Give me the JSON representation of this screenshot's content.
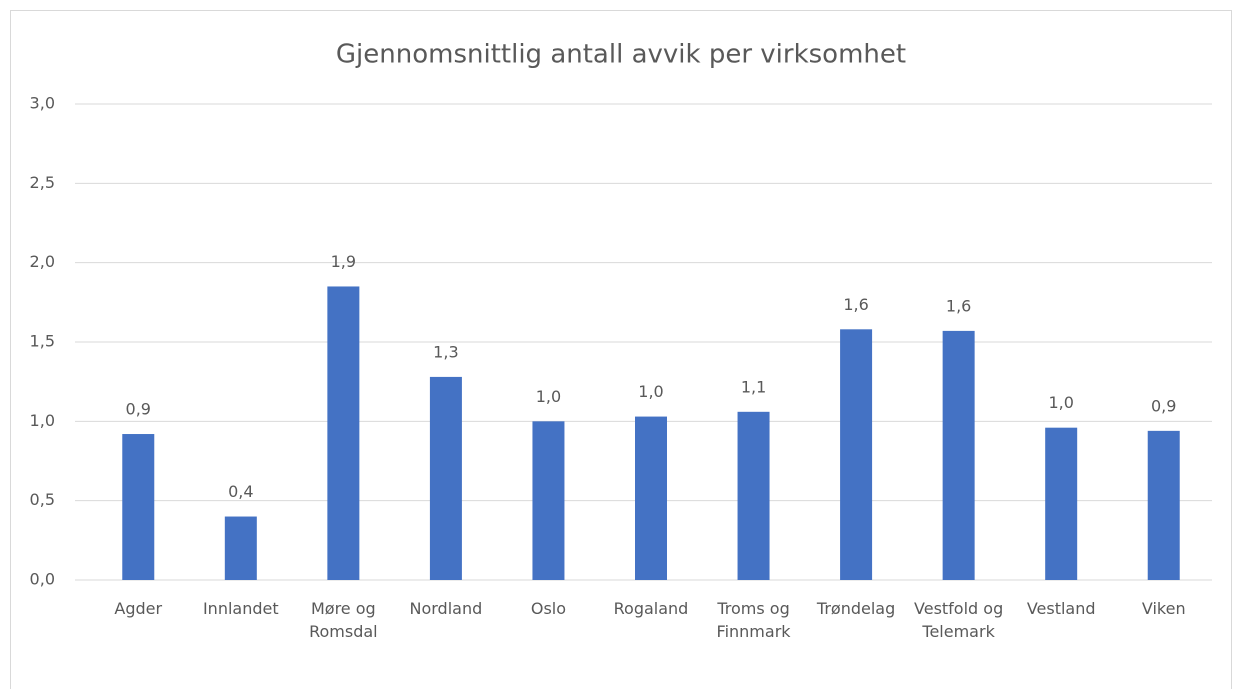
{
  "chart_data": {
    "type": "bar",
    "title": "Gjennomsnittlig antall avvik per virksomhet",
    "categories": [
      "Agder",
      "Innlandet",
      "Møre og Romsdal",
      "Nordland",
      "Oslo",
      "Rogaland",
      "Troms og Finnmark",
      "Trøndelag",
      "Vestfold og Telemark",
      "Vestland",
      "Viken"
    ],
    "values": [
      0.92,
      0.4,
      1.85,
      1.28,
      1.0,
      1.03,
      1.06,
      1.58,
      1.57,
      0.96,
      0.94
    ],
    "value_labels": [
      "0,9",
      "0,4",
      "1,9",
      "1,3",
      "1,0",
      "1,0",
      "1,1",
      "1,6",
      "1,6",
      "1,0",
      "0,9"
    ],
    "color": "#4472c4",
    "ylim": [
      0,
      3
    ],
    "yticks": [
      {
        "value": 0,
        "label": "0,0"
      },
      {
        "value": 0.5,
        "label": "0,5"
      },
      {
        "value": 1,
        "label": "1,0"
      },
      {
        "value": 1.5,
        "label": "1,5"
      },
      {
        "value": 2,
        "label": "2,0"
      },
      {
        "value": 2.5,
        "label": "2,5"
      },
      {
        "value": 3,
        "label": "3,0"
      }
    ],
    "grid": true
  }
}
